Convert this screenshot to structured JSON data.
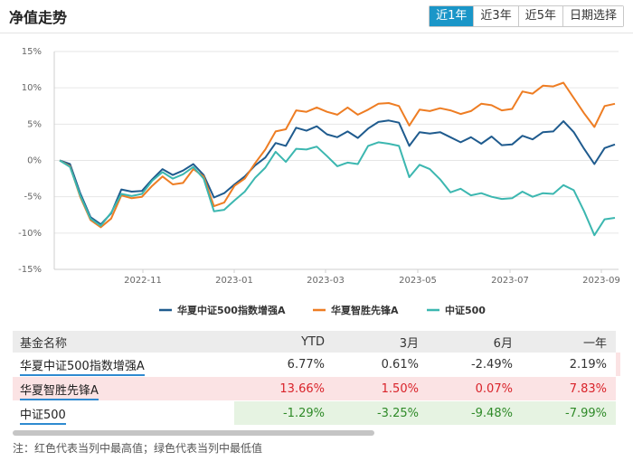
{
  "header": {
    "title": "净值走势",
    "tabs": [
      "近1年",
      "近3年",
      "近5年",
      "日期选择"
    ],
    "active_tab": "近1年"
  },
  "chart_data": {
    "type": "line",
    "x_tick_labels": [
      "2022-11",
      "2023-01",
      "2023-03",
      "2023-05",
      "2023-07",
      "2023-09"
    ],
    "ylim": [
      -15,
      15
    ],
    "y_ticks": [
      -15,
      -10,
      -5,
      0,
      5,
      10,
      15
    ],
    "y_tick_labels": [
      "-15%",
      "-10%",
      "-5%",
      "0%",
      "5%",
      "10%",
      "15%"
    ],
    "series": [
      {
        "name": "华夏中证500指数增强A",
        "color": "#1f5b8e",
        "values": [
          0,
          -0.5,
          -4.5,
          -7.8,
          -8.8,
          -7.3,
          -4.0,
          -4.3,
          -4.2,
          -2.6,
          -1.2,
          -2.0,
          -1.4,
          -0.5,
          -2.0,
          -5.1,
          -4.5,
          -3.3,
          -2.2,
          -0.7,
          0.4,
          2.4,
          2.0,
          4.5,
          4.1,
          4.7,
          3.6,
          3.2,
          4.0,
          3.1,
          4.4,
          5.3,
          5.5,
          5.2,
          2.0,
          3.9,
          3.7,
          3.9,
          3.2,
          2.5,
          3.2,
          2.3,
          3.3,
          2.1,
          2.2,
          3.4,
          2.9,
          3.9,
          4.0,
          5.4,
          3.9,
          1.6,
          -0.5,
          1.7,
          2.2
        ]
      },
      {
        "name": "华夏智胜先锋A",
        "color": "#ee7d23",
        "values": [
          0,
          -0.8,
          -5.0,
          -8.2,
          -9.2,
          -8.0,
          -4.8,
          -5.2,
          -5.0,
          -3.5,
          -2.2,
          -3.3,
          -3.1,
          -1.2,
          -2.2,
          -6.3,
          -5.8,
          -3.5,
          -2.5,
          -0.4,
          1.5,
          4.0,
          4.3,
          6.9,
          6.7,
          7.3,
          6.7,
          6.3,
          7.3,
          6.3,
          7.0,
          7.8,
          7.9,
          7.5,
          4.8,
          7.0,
          6.8,
          7.2,
          6.9,
          6.4,
          6.8,
          7.8,
          7.6,
          6.9,
          7.1,
          9.5,
          9.2,
          10.3,
          10.2,
          10.7,
          8.6,
          6.5,
          4.6,
          7.5,
          7.8
        ]
      },
      {
        "name": "中证500",
        "color": "#3cb7b0",
        "values": [
          0,
          -0.9,
          -4.8,
          -8.0,
          -9.0,
          -7.2,
          -4.6,
          -4.9,
          -4.6,
          -2.8,
          -1.6,
          -2.5,
          -1.9,
          -0.9,
          -2.5,
          -7.0,
          -6.8,
          -5.5,
          -4.3,
          -2.4,
          -1.0,
          1.2,
          -0.2,
          1.6,
          1.5,
          1.9,
          0.6,
          -0.8,
          -0.3,
          -0.5,
          2.0,
          2.5,
          2.3,
          2.0,
          -2.3,
          -0.6,
          -1.2,
          -2.6,
          -4.4,
          -3.9,
          -4.8,
          -4.5,
          -5.0,
          -5.3,
          -5.2,
          -4.3,
          -5.0,
          -4.5,
          -4.6,
          -3.4,
          -4.1,
          -7.0,
          -10.3,
          -8.1,
          -7.9
        ]
      }
    ]
  },
  "table": {
    "headers": [
      "基金名称",
      "YTD",
      "3月",
      "6月",
      "一年"
    ],
    "rows": [
      {
        "name": "华夏中证500指数增强A",
        "ytd": "6.77%",
        "m3": "0.61%",
        "m6": "-2.49%",
        "y1": "2.19%"
      },
      {
        "name": "华夏智胜先锋A",
        "ytd": "13.66%",
        "m3": "1.50%",
        "m6": "0.07%",
        "y1": "7.83%"
      },
      {
        "name": "中证500",
        "ytd": "-1.29%",
        "m3": "-3.25%",
        "m6": "-9.48%",
        "y1": "-7.99%"
      }
    ]
  },
  "footnote": "注：红色代表当列中最高值；绿色代表当列中最低值"
}
